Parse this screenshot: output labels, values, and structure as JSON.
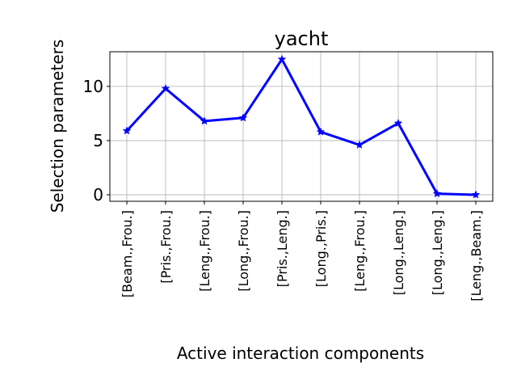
{
  "chart_data": {
    "type": "line",
    "title": "yacht",
    "xlabel": "Active interaction components",
    "ylabel": "Selection parameters",
    "categories": [
      "[Beam.,Frou.]",
      "[Pris.,Frou.]",
      "[Leng.,Frou.]",
      "[Long.,Frou.]",
      "[Pris.,Leng.]",
      "[Long.,Pris.]",
      "[Leng.,Frou.]",
      "[Long.,Leng.]",
      "[Long.,Leng.]",
      "[Leng.,Beam.]"
    ],
    "series": [
      {
        "values": [
          5.9,
          9.8,
          6.8,
          7.1,
          12.5,
          5.8,
          4.6,
          6.6,
          0.1,
          0.0
        ],
        "color": "#0000ff",
        "marker": "star"
      }
    ],
    "yticks": [
      0,
      5,
      10
    ],
    "ylim": [
      -0.6,
      13.2
    ],
    "grid": true
  }
}
